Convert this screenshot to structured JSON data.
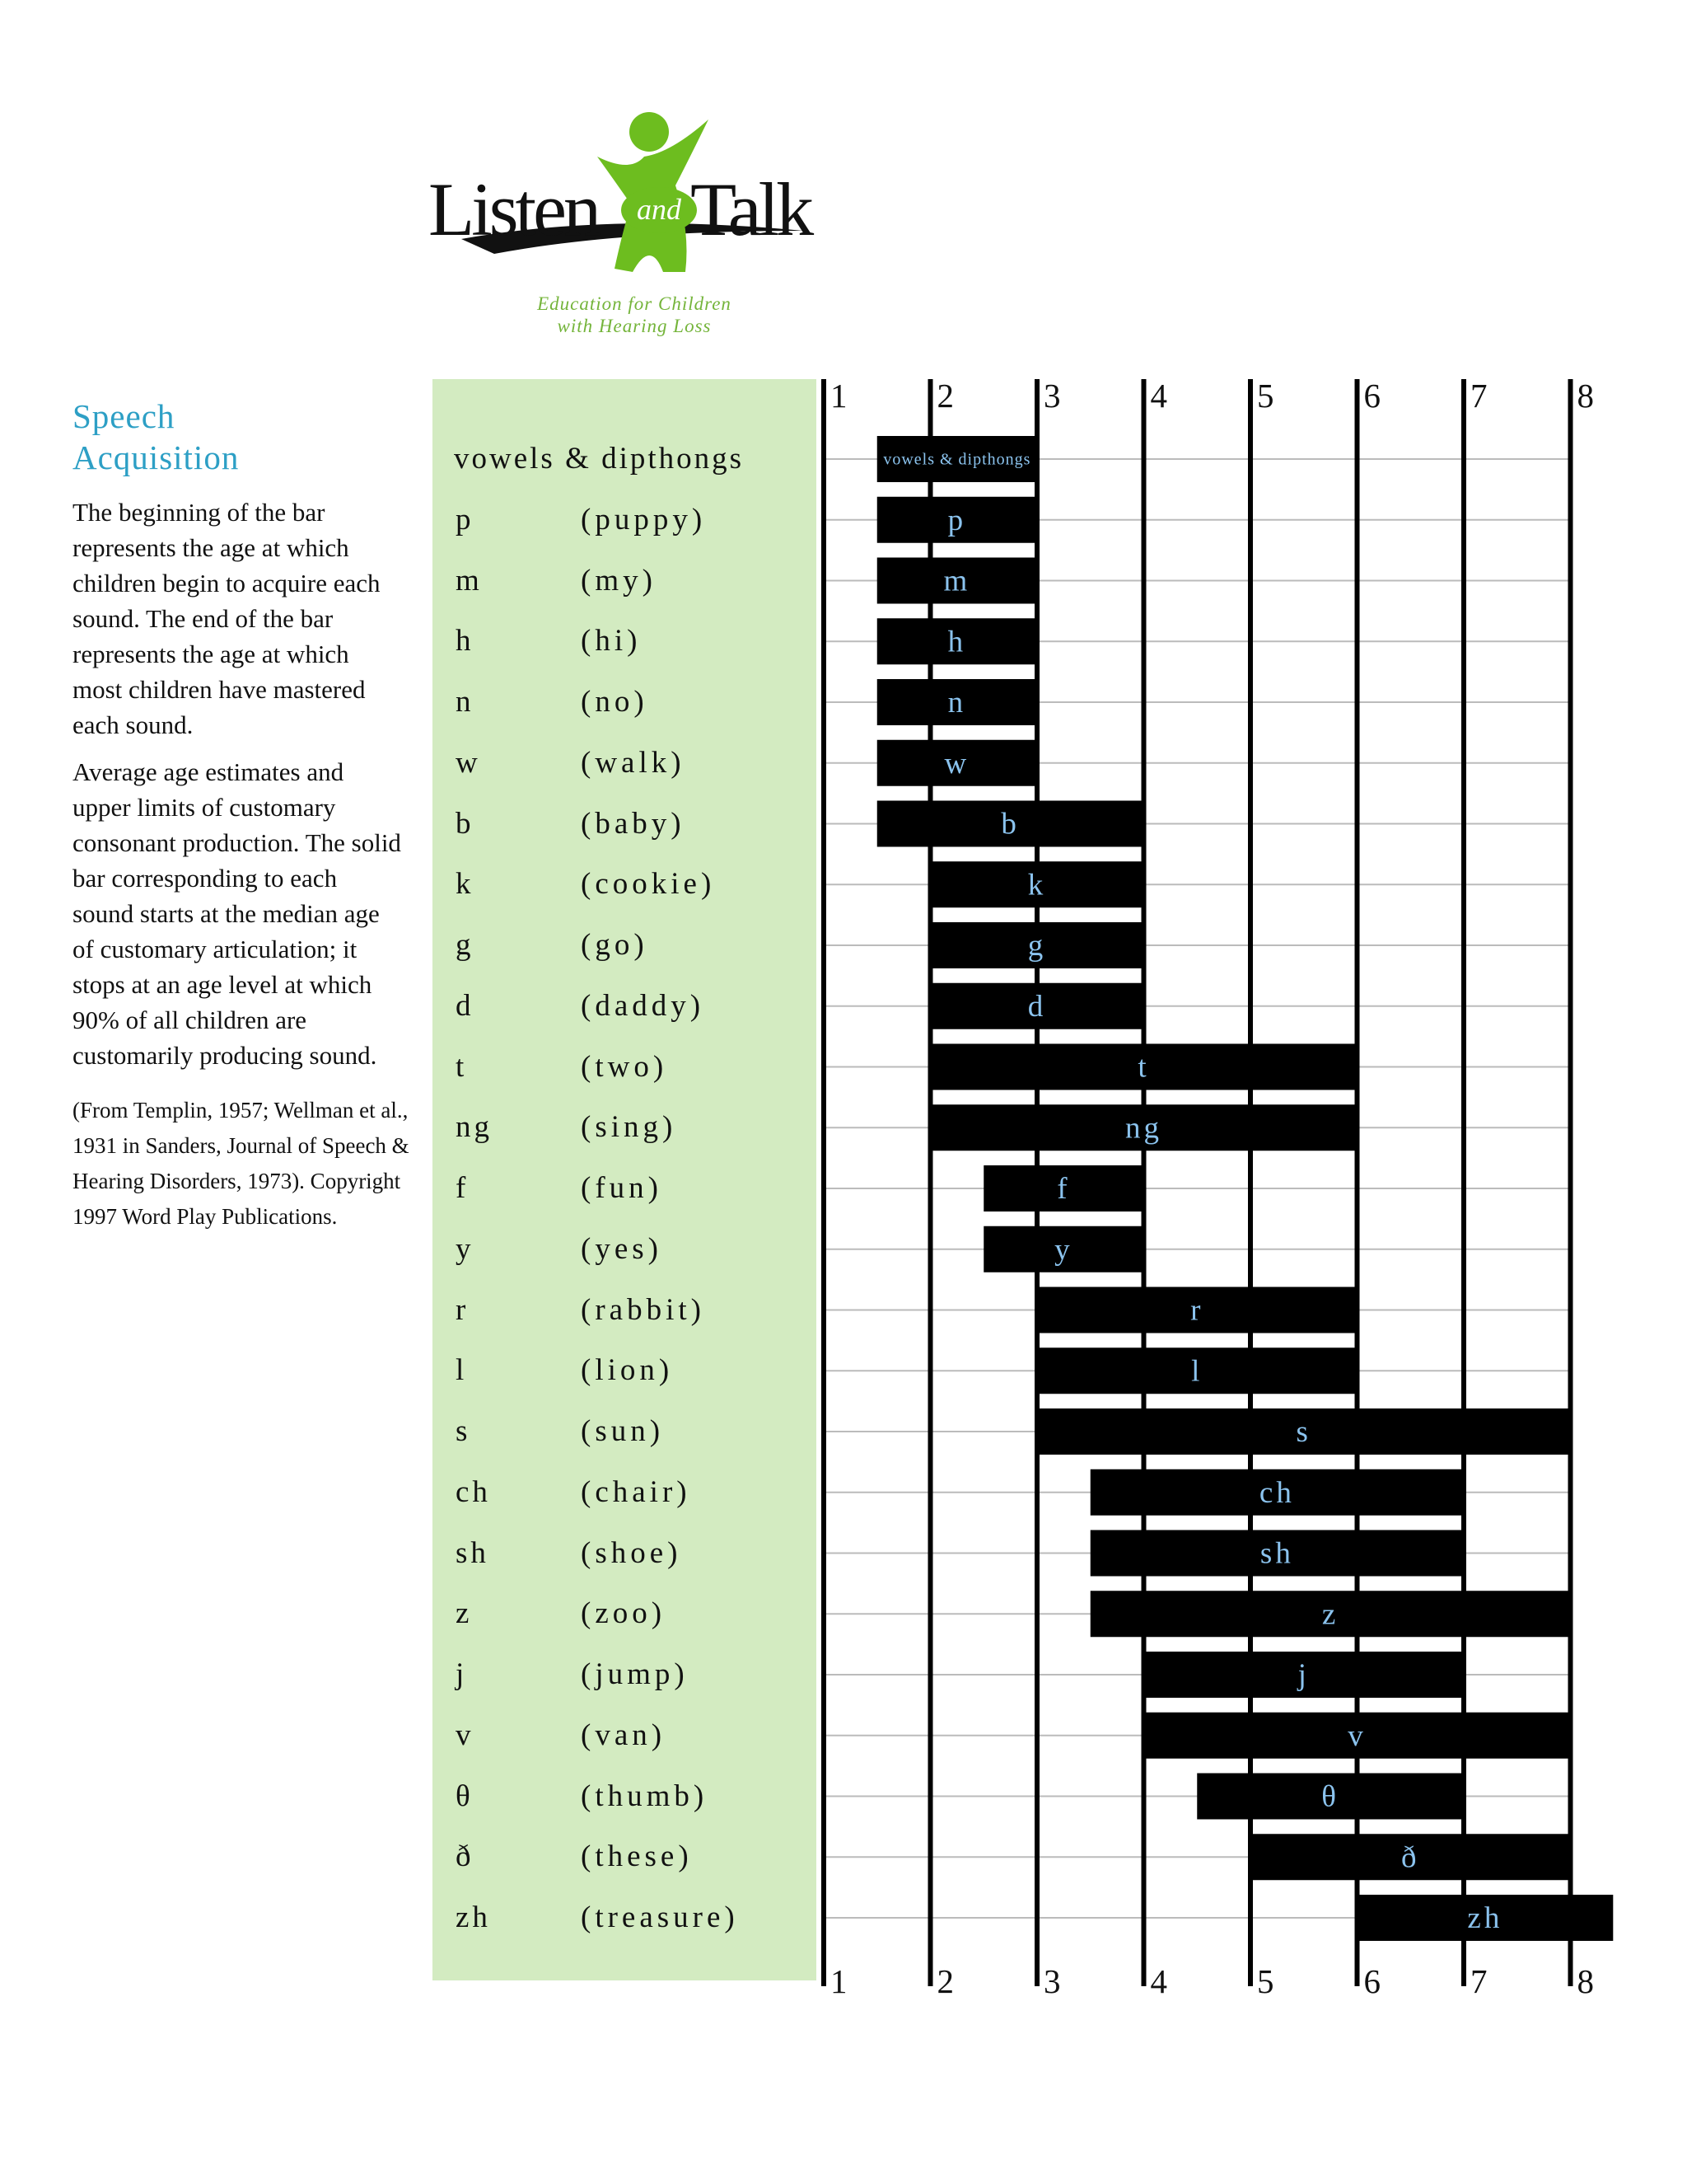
{
  "logo": {
    "word_left": "Listen",
    "word_mid": "and",
    "word_right": "Talk",
    "tagline_line1": "Education for Children",
    "tagline_line2": "with Hearing Loss",
    "colors": {
      "green": "#6dbd1f",
      "black": "#111111",
      "tagline": "#74b43a"
    }
  },
  "sidebar": {
    "title": "Speech Acquisition",
    "paragraph1": "The beginning of the bar represents the age at which children begin to acquire each sound. The end of the bar represents the age at which most children have mastered each sound.",
    "paragraph2": "Average age estimates and upper limits of customary consonant production. The solid bar corresponding to each sound starts at the median age of customary articulation; it stops at an age level at which 90% of all children are customarily producing sound.",
    "source": "(From Templin, 1957; Wellman et al., 1931 in Sanders, Journal of Speech & Hearing Disorders, 1973). Copyright 1997 Word Play Publications."
  },
  "colors": {
    "title": "#2d9fc5",
    "panel": "#d3ebc1",
    "bar": "#000000",
    "bar_label": "#8bc3ee",
    "grid": "#bbbbbb"
  },
  "chart_data": {
    "type": "bar",
    "orientation": "horizontal-range",
    "x_ticks": [
      "1",
      "2",
      "3",
      "4",
      "5",
      "6",
      "7",
      "8"
    ],
    "xlim": [
      1,
      8
    ],
    "grid": true,
    "rows": [
      {
        "sound": "vowels & dipthongs",
        "example": "",
        "start": 1.5,
        "end": 3
      },
      {
        "sound": "p",
        "example": "(puppy)",
        "start": 1.5,
        "end": 3
      },
      {
        "sound": "m",
        "example": "(my)",
        "start": 1.5,
        "end": 3
      },
      {
        "sound": "h",
        "example": "(hi)",
        "start": 1.5,
        "end": 3
      },
      {
        "sound": "n",
        "example": "(no)",
        "start": 1.5,
        "end": 3
      },
      {
        "sound": "w",
        "example": "(walk)",
        "start": 1.5,
        "end": 3
      },
      {
        "sound": "b",
        "example": "(baby)",
        "start": 1.5,
        "end": 4
      },
      {
        "sound": "k",
        "example": "(cookie)",
        "start": 2,
        "end": 4
      },
      {
        "sound": "g",
        "example": "(go)",
        "start": 2,
        "end": 4
      },
      {
        "sound": "d",
        "example": "(daddy)",
        "start": 2,
        "end": 4
      },
      {
        "sound": "t",
        "example": "(two)",
        "start": 2,
        "end": 6
      },
      {
        "sound": "ng",
        "example": "(sing)",
        "start": 2,
        "end": 6
      },
      {
        "sound": "f",
        "example": "(fun)",
        "start": 2.5,
        "end": 4
      },
      {
        "sound": "y",
        "example": "(yes)",
        "start": 2.5,
        "end": 4
      },
      {
        "sound": "r",
        "example": "(rabbit)",
        "start": 3,
        "end": 6
      },
      {
        "sound": "l",
        "example": "(lion)",
        "start": 3,
        "end": 6
      },
      {
        "sound": "s",
        "example": "(sun)",
        "start": 3,
        "end": 8
      },
      {
        "sound": "ch",
        "example": "(chair)",
        "start": 3.5,
        "end": 7
      },
      {
        "sound": "sh",
        "example": "(shoe)",
        "start": 3.5,
        "end": 7
      },
      {
        "sound": "z",
        "example": "(zoo)",
        "start": 3.5,
        "end": 8
      },
      {
        "sound": "j",
        "example": "(jump)",
        "start": 4,
        "end": 7
      },
      {
        "sound": "v",
        "example": "(van)",
        "start": 4,
        "end": 8
      },
      {
        "sound": "θ",
        "example": "(thumb)",
        "start": 4.5,
        "end": 7
      },
      {
        "sound": "ð",
        "example": "(these)",
        "start": 5,
        "end": 8
      },
      {
        "sound": "zh",
        "example": "(treasure)",
        "start": 6,
        "end": 8.4
      }
    ]
  }
}
